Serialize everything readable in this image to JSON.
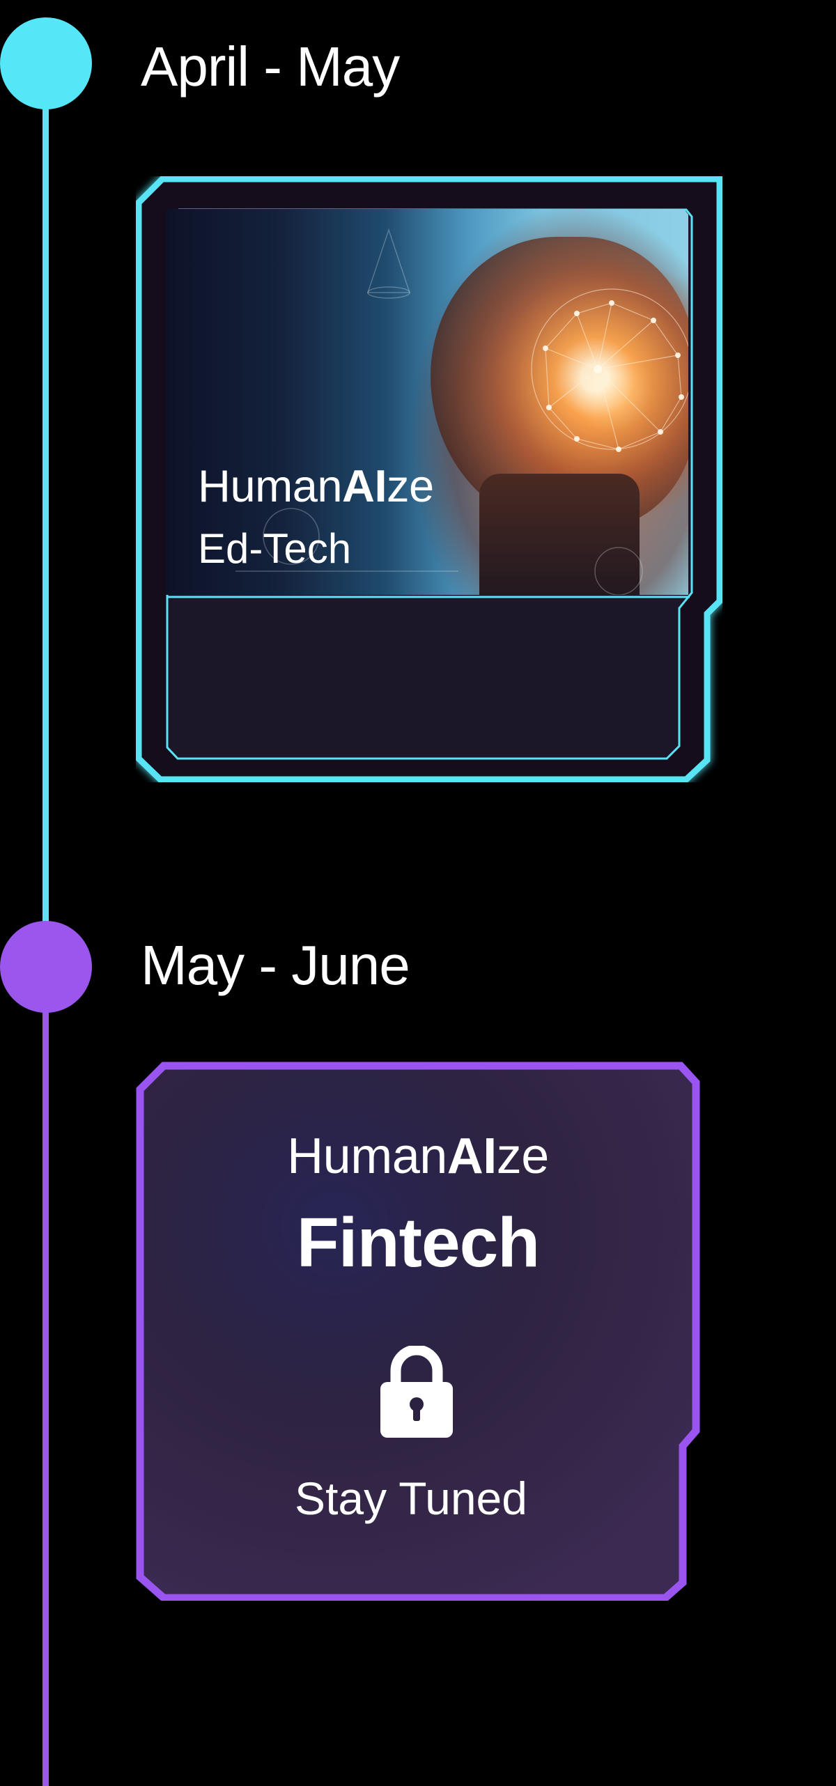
{
  "timeline": [
    {
      "period": "April - May",
      "color": "#55e6f7",
      "card": {
        "brand_prefix": "Human",
        "brand_bold": "AI",
        "brand_suffix": "ze",
        "subtitle": "Ed-Tech",
        "image": "child-brain-network-image",
        "locked": false
      }
    },
    {
      "period": "May - June",
      "color": "#9b56ee",
      "card": {
        "brand_prefix": "Human",
        "brand_bold": "AI",
        "brand_suffix": "ze",
        "subtitle": "Fintech",
        "icon": "lock-icon",
        "status": "Stay Tuned",
        "locked": true
      }
    }
  ]
}
